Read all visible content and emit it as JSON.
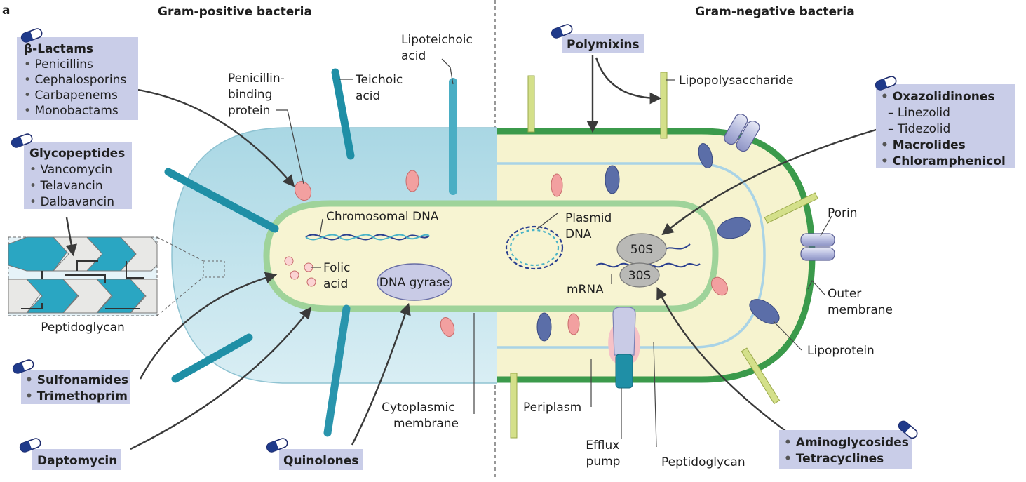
{
  "panel_letter": "a",
  "headers": {
    "gram_positive": "Gram-positive bacteria",
    "gram_negative": "Gram-negative bacteria"
  },
  "drug_boxes": {
    "beta_lactams": {
      "title": "β-Lactams",
      "items": [
        "Penicillins",
        "Cephalosporins",
        "Carbapenems",
        "Monobactams"
      ]
    },
    "glycopeptides": {
      "title": "Glycopeptides",
      "items": [
        "Vancomycin",
        "Telavancin",
        "Dalbavancin"
      ]
    },
    "sulfonamides": {
      "items": [
        "Sulfonamides",
        "Trimethoprim"
      ]
    },
    "daptomycin": {
      "title": "Daptomycin"
    },
    "quinolones": {
      "title": "Quinolones"
    },
    "polymixins": {
      "title": "Polymixins"
    },
    "oxazolidinones": {
      "lines": [
        "Oxazolidinones",
        "– Linezolid",
        "– Tidezolid",
        "Macrolides",
        "Chloramphenicol"
      ]
    },
    "aminoglycosides": {
      "items": [
        "Aminoglycosides",
        "Tetracyclines"
      ]
    }
  },
  "structure_labels": {
    "penicillin_binding_protein": [
      "Penicillin-",
      "binding",
      "protein"
    ],
    "teichoic_acid": [
      "Teichoic",
      "acid"
    ],
    "lipoteichoic_acid": [
      "Lipoteichoic",
      "acid"
    ],
    "chromosomal_dna": "Chromosomal DNA",
    "plasmid_dna": [
      "Plasmid",
      "DNA"
    ],
    "folic_acid": [
      "Folic",
      "acid"
    ],
    "dna_gyrase": "DNA gyrase",
    "cytoplasmic_membrane": [
      "Cytoplasmic",
      "membrane"
    ],
    "peptidoglycan_inset": "Peptidoglycan",
    "lipopolysaccharide": "Lipopolysaccharide",
    "porin": "Porin",
    "outer_membrane": [
      "Outer",
      "membrane"
    ],
    "lipoprotein": "Lipoprotein",
    "ribosome_50s": "50S",
    "ribosome_30s": "30S",
    "mrna": "mRNA",
    "periplasm": "Periplasm",
    "efflux_pump": [
      "Efflux",
      "pump"
    ],
    "peptidoglycan_gn": "Peptidoglycan"
  },
  "colors": {
    "gp_wall": "#bfe0ea",
    "cytoplasm": "#f6f3cf",
    "membrane": "#9fd39a",
    "outer_membrane": "#3b9a4b",
    "teal": "#1f8fa6",
    "pbp": "#f2a0a0",
    "lipoprotein": "#5b6ea8",
    "box": "#c9cde8"
  },
  "icons": [
    "capsule-icon"
  ]
}
